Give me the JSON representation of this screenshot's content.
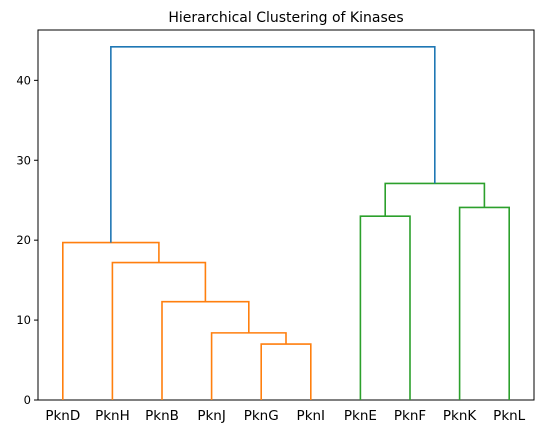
{
  "chart_data": {
    "type": "dendrogram",
    "title": "Hierarchical Clustering of Kinases",
    "xlabel": "",
    "ylabel": "",
    "ylim": [
      0,
      46.3
    ],
    "yticks": [
      0,
      10,
      20,
      30,
      40
    ],
    "leaves": [
      "PknD",
      "PknH",
      "PknB",
      "PknJ",
      "PknG",
      "PknI",
      "PknE",
      "PknF",
      "PknK",
      "PknL"
    ],
    "colors": {
      "cluster_1": "#ff7f0e",
      "cluster_2": "#2ca02c",
      "root": "#1f77b4"
    },
    "merges": [
      {
        "left": "PknG",
        "right": "PknI",
        "height": 7.0,
        "color": "cluster_1"
      },
      {
        "left": "PknJ",
        "right": "PknG+PknI",
        "height": 8.4,
        "color": "cluster_1"
      },
      {
        "left": "PknB",
        "right": "PknJ+PknG+PknI",
        "height": 12.3,
        "color": "cluster_1"
      },
      {
        "left": "PknH",
        "right": "PknB+PknJ+PknG+PknI",
        "height": 17.2,
        "color": "cluster_1"
      },
      {
        "left": "PknD",
        "right": "PknH+PknB+PknJ+PknG+PknI",
        "height": 19.7,
        "color": "cluster_1"
      },
      {
        "left": "PknE",
        "right": "PknF",
        "height": 23.0,
        "color": "cluster_2"
      },
      {
        "left": "PknK",
        "right": "PknL",
        "height": 24.1,
        "color": "cluster_2"
      },
      {
        "left": "PknE+PknF",
        "right": "PknK+PknL",
        "height": 27.1,
        "color": "cluster_2"
      },
      {
        "left": "cluster_1",
        "right": "cluster_2",
        "height": 44.2,
        "color": "root"
      }
    ]
  }
}
